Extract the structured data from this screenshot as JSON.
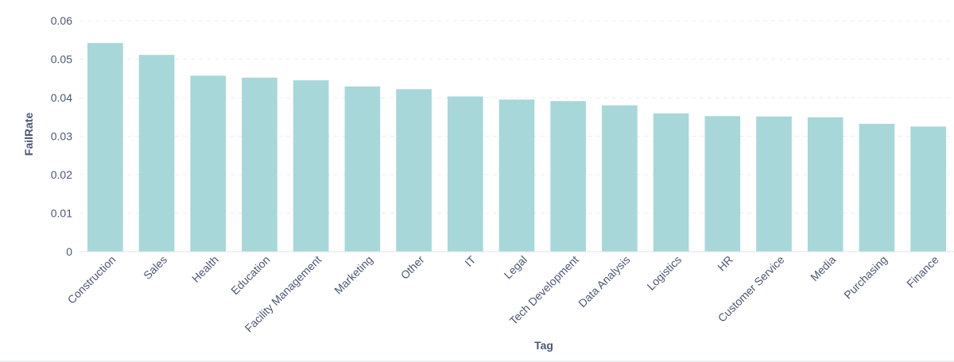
{
  "chart_data": {
    "type": "bar",
    "xlabel": "Tag",
    "ylabel": "FailRate",
    "ylim": [
      0,
      0.06
    ],
    "yticks": [
      "0",
      "0.01",
      "0.02",
      "0.03",
      "0.04",
      "0.05",
      "0.06"
    ],
    "ytick_values": [
      0,
      0.01,
      0.02,
      0.03,
      0.04,
      0.05,
      0.06
    ],
    "grid": true,
    "bar_color": "#a7d7d9",
    "categories": [
      "Construction",
      "Sales",
      "Health",
      "Education",
      "Facility Management",
      "Marketing",
      "Other",
      "IT",
      "Legal",
      "Tech Development",
      "Data Analysis",
      "Logistics",
      "HR",
      "Customer Service",
      "Media",
      "Purchasing",
      "Finance"
    ],
    "values": [
      0.0542,
      0.0511,
      0.0457,
      0.0452,
      0.0445,
      0.0429,
      0.0422,
      0.0403,
      0.0395,
      0.0391,
      0.038,
      0.0359,
      0.0352,
      0.0351,
      0.0349,
      0.0332,
      0.0325
    ]
  }
}
